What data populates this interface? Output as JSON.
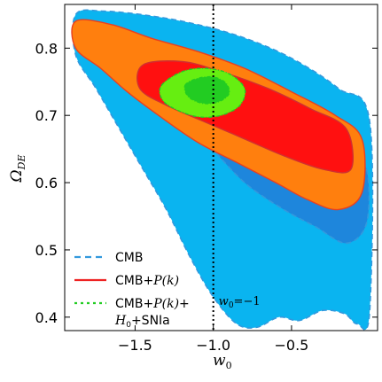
{
  "chart_data": {
    "type": "contour",
    "xlabel": "w0",
    "ylabel": "ΩDE",
    "xlim": [
      -1.95,
      0.05
    ],
    "ylim": [
      0.38,
      0.865
    ],
    "xticks": [
      -1.5,
      -1.0,
      -0.5
    ],
    "xtick_labels": [
      "−1.5",
      "−1.0",
      "−0.5"
    ],
    "yticks": [
      0.4,
      0.5,
      0.6,
      0.7,
      0.8
    ],
    "ytick_labels": [
      "0.4",
      "0.5",
      "0.6",
      "0.7",
      "0.8"
    ],
    "reference_line": {
      "x": -1.0,
      "style": "dotted",
      "label": "w0 = −1"
    },
    "legend": {
      "placement": "lower-left",
      "entries": [
        {
          "label": "CMB",
          "color": "#3399dd",
          "style": "dashed"
        },
        {
          "label": "CMB+P(k)",
          "color": "#ee2222",
          "style": "solid"
        },
        {
          "label": "CMB+P(k)+",
          "label2": "H0+SNIa",
          "color": "#22cc22",
          "style": "dashdot"
        }
      ]
    },
    "regions": [
      {
        "name": "CMB 95%",
        "color": "#0ab4f0",
        "stroke": "#3399dd",
        "points": [
          [
            -1.88,
            0.85
          ],
          [
            -1.7,
            0.855
          ],
          [
            -1.4,
            0.848
          ],
          [
            -1.1,
            0.835
          ],
          [
            -0.8,
            0.815
          ],
          [
            -0.5,
            0.785
          ],
          [
            -0.2,
            0.74
          ],
          [
            0.0,
            0.69
          ],
          [
            0.0,
            0.41
          ],
          [
            -0.08,
            0.39
          ],
          [
            -0.16,
            0.405
          ],
          [
            -0.3,
            0.41
          ],
          [
            -0.45,
            0.395
          ],
          [
            -0.58,
            0.4
          ],
          [
            -0.72,
            0.385
          ],
          [
            -0.85,
            0.39
          ],
          [
            -1.0,
            0.43
          ],
          [
            -1.15,
            0.49
          ],
          [
            -1.3,
            0.56
          ],
          [
            -1.45,
            0.62
          ],
          [
            -1.6,
            0.68
          ],
          [
            -1.75,
            0.74
          ],
          [
            -1.88,
            0.79
          ]
        ]
      },
      {
        "name": "CMB 68%",
        "color": "#1e86dc",
        "stroke": "#3399dd",
        "points": [
          [
            -1.87,
            0.828
          ],
          [
            -1.6,
            0.82
          ],
          [
            -1.3,
            0.795
          ],
          [
            -1.0,
            0.765
          ],
          [
            -0.7,
            0.73
          ],
          [
            -0.4,
            0.69
          ],
          [
            -0.15,
            0.655
          ],
          [
            -0.02,
            0.62
          ],
          [
            -0.02,
            0.54
          ],
          [
            -0.15,
            0.51
          ],
          [
            -0.35,
            0.535
          ],
          [
            -0.55,
            0.56
          ],
          [
            -0.8,
            0.6
          ],
          [
            -1.05,
            0.66
          ],
          [
            -1.3,
            0.71
          ],
          [
            -1.55,
            0.75
          ],
          [
            -1.8,
            0.79
          ],
          [
            -1.88,
            0.805
          ]
        ]
      },
      {
        "name": "CMB+P(k) 95%",
        "color": "#ff7f0e",
        "stroke": "#e84020",
        "points": [
          [
            -1.88,
            0.84
          ],
          [
            -1.65,
            0.835
          ],
          [
            -1.4,
            0.815
          ],
          [
            -1.1,
            0.795
          ],
          [
            -0.8,
            0.77
          ],
          [
            -0.5,
            0.735
          ],
          [
            -0.22,
            0.7
          ],
          [
            -0.05,
            0.665
          ],
          [
            -0.05,
            0.585
          ],
          [
            -0.2,
            0.56
          ],
          [
            -0.4,
            0.575
          ],
          [
            -0.6,
            0.6
          ],
          [
            -0.85,
            0.63
          ],
          [
            -1.1,
            0.66
          ],
          [
            -1.35,
            0.7
          ],
          [
            -1.55,
            0.735
          ],
          [
            -1.72,
            0.77
          ],
          [
            -1.88,
            0.8
          ]
        ]
      },
      {
        "name": "CMB+P(k) 68%",
        "color": "#ff1010",
        "stroke": "#d03030",
        "points": [
          [
            -1.45,
            0.775
          ],
          [
            -1.2,
            0.78
          ],
          [
            -0.95,
            0.765
          ],
          [
            -0.65,
            0.74
          ],
          [
            -0.38,
            0.71
          ],
          [
            -0.15,
            0.68
          ],
          [
            -0.12,
            0.62
          ],
          [
            -0.3,
            0.62
          ],
          [
            -0.55,
            0.64
          ],
          [
            -0.8,
            0.665
          ],
          [
            -1.05,
            0.69
          ],
          [
            -1.3,
            0.715
          ],
          [
            -1.47,
            0.74
          ]
        ]
      },
      {
        "name": "CMB+P(k)+H0+SNIa 95%",
        "color": "#66ee11",
        "stroke": "#22cc22",
        "points": [
          [
            -1.33,
            0.745
          ],
          [
            -1.2,
            0.765
          ],
          [
            -1.05,
            0.77
          ],
          [
            -0.9,
            0.762
          ],
          [
            -0.8,
            0.74
          ],
          [
            -0.83,
            0.715
          ],
          [
            -0.95,
            0.7
          ],
          [
            -1.1,
            0.698
          ],
          [
            -1.25,
            0.71
          ],
          [
            -1.33,
            0.725
          ]
        ]
      },
      {
        "name": "CMB+P(k)+H0+SNIa 68%",
        "color": "#22cc22",
        "stroke": "#22cc22",
        "points": [
          [
            -1.18,
            0.745
          ],
          [
            -1.1,
            0.755
          ],
          [
            -1.0,
            0.757
          ],
          [
            -0.92,
            0.748
          ],
          [
            -0.9,
            0.732
          ],
          [
            -0.97,
            0.72
          ],
          [
            -1.07,
            0.718
          ],
          [
            -1.16,
            0.728
          ]
        ]
      }
    ]
  }
}
